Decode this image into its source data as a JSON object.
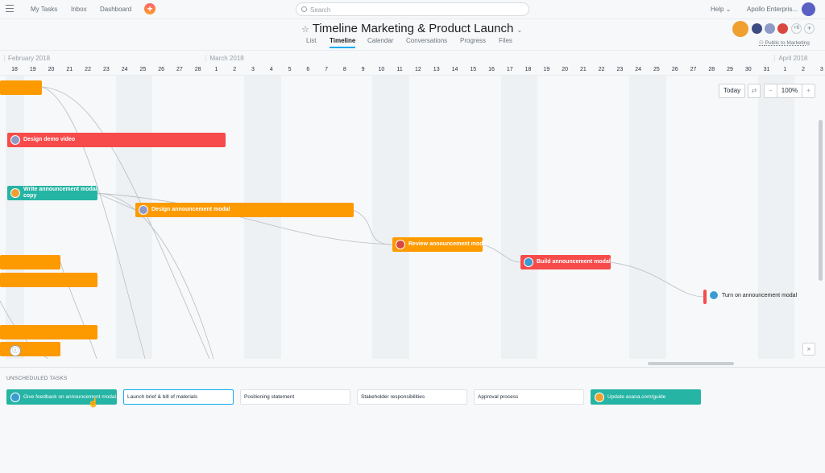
{
  "topbar": {
    "nav": [
      "My Tasks",
      "Inbox",
      "Dashboard"
    ],
    "search_placeholder": "Search",
    "help": "Help ⌄",
    "org": "Apollo Enterpris..."
  },
  "project": {
    "title": "Timeline Marketing & Product Launch",
    "tabs": [
      "List",
      "Timeline",
      "Calendar",
      "Conversations",
      "Progress",
      "Files"
    ],
    "active_tab": "Timeline",
    "members_extra": "+6",
    "privacy": "Public to Marketing"
  },
  "timeline": {
    "months": [
      {
        "label": "February 2018",
        "days": [
          18,
          19,
          20,
          21,
          22,
          23,
          24,
          25,
          26,
          27,
          28
        ]
      },
      {
        "label": "March 2018",
        "days": [
          1,
          2,
          3,
          4,
          5,
          6,
          7,
          8,
          9,
          10,
          11,
          12,
          13,
          14,
          15,
          16,
          17,
          18,
          19,
          20,
          21,
          22,
          23,
          24,
          25,
          26,
          27,
          28,
          29,
          30,
          31
        ]
      },
      {
        "label": "April 2018",
        "days": [
          1,
          2,
          3
        ]
      }
    ],
    "controls": {
      "today": "Today",
      "zoom": "100%",
      "minus": "−",
      "plus": "+"
    },
    "tasks": [
      {
        "name": "Design demo video",
        "color": "red"
      },
      {
        "name": "Write announcement modal copy",
        "color": "teal"
      },
      {
        "name": "Design announcement modal",
        "color": "orange"
      },
      {
        "name": "Review announcement modal",
        "color": "orange"
      },
      {
        "name": "Build announcement modal",
        "color": "red"
      },
      {
        "name": "Turn on announcement modal",
        "color": "red"
      }
    ]
  },
  "unscheduled": {
    "label": "UNSCHEDULED TASKS",
    "tasks": [
      "Give feedback on announcement modal",
      "Launch brief & bill of materials",
      "Positioning statement",
      "Stakeholder responsibilities",
      "Approval process",
      "Update asana.com/guide"
    ]
  },
  "colors": {
    "orange": "#fd9a00",
    "red": "#f74b4b",
    "teal": "#26b4a4",
    "accent": "#14aaf5"
  }
}
